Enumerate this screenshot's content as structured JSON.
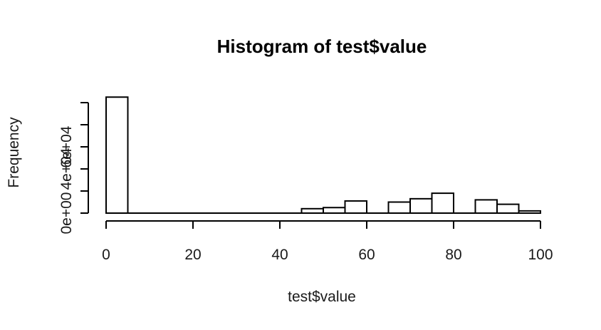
{
  "chart_data": {
    "type": "histogram",
    "title": "Histogram of test$value",
    "xlabel": "test$value",
    "ylabel": "Frequency",
    "bins": [
      {
        "x0": 0,
        "x1": 5,
        "count": 105000
      },
      {
        "x0": 5,
        "x1": 10,
        "count": 0
      },
      {
        "x0": 10,
        "x1": 15,
        "count": 0
      },
      {
        "x0": 15,
        "x1": 20,
        "count": 0
      },
      {
        "x0": 20,
        "x1": 25,
        "count": 0
      },
      {
        "x0": 25,
        "x1": 30,
        "count": 0
      },
      {
        "x0": 30,
        "x1": 35,
        "count": 0
      },
      {
        "x0": 35,
        "x1": 40,
        "count": 0
      },
      {
        "x0": 40,
        "x1": 45,
        "count": 0
      },
      {
        "x0": 45,
        "x1": 50,
        "count": 4000
      },
      {
        "x0": 50,
        "x1": 55,
        "count": 5000
      },
      {
        "x0": 55,
        "x1": 60,
        "count": 11000
      },
      {
        "x0": 60,
        "x1": 65,
        "count": 0
      },
      {
        "x0": 65,
        "x1": 70,
        "count": 10000
      },
      {
        "x0": 70,
        "x1": 75,
        "count": 13000
      },
      {
        "x0": 75,
        "x1": 80,
        "count": 18000
      },
      {
        "x0": 80,
        "x1": 85,
        "count": 0
      },
      {
        "x0": 85,
        "x1": 90,
        "count": 12000
      },
      {
        "x0": 90,
        "x1": 95,
        "count": 8000
      },
      {
        "x0": 95,
        "x1": 100,
        "count": 2000
      }
    ],
    "xlim": [
      0,
      100
    ],
    "ylim": [
      0,
      100000
    ],
    "x_ticks": [
      0,
      20,
      40,
      60,
      80,
      100
    ],
    "x_tick_labels": [
      "0",
      "20",
      "40",
      "60",
      "80",
      "100"
    ],
    "y_ticks": [
      0,
      20000,
      40000,
      60000,
      80000,
      100000
    ],
    "y_tick_labels": [
      "0e+00",
      "",
      "4e+04",
      "6e+04",
      "",
      ""
    ],
    "grid": false,
    "legend": "none"
  }
}
